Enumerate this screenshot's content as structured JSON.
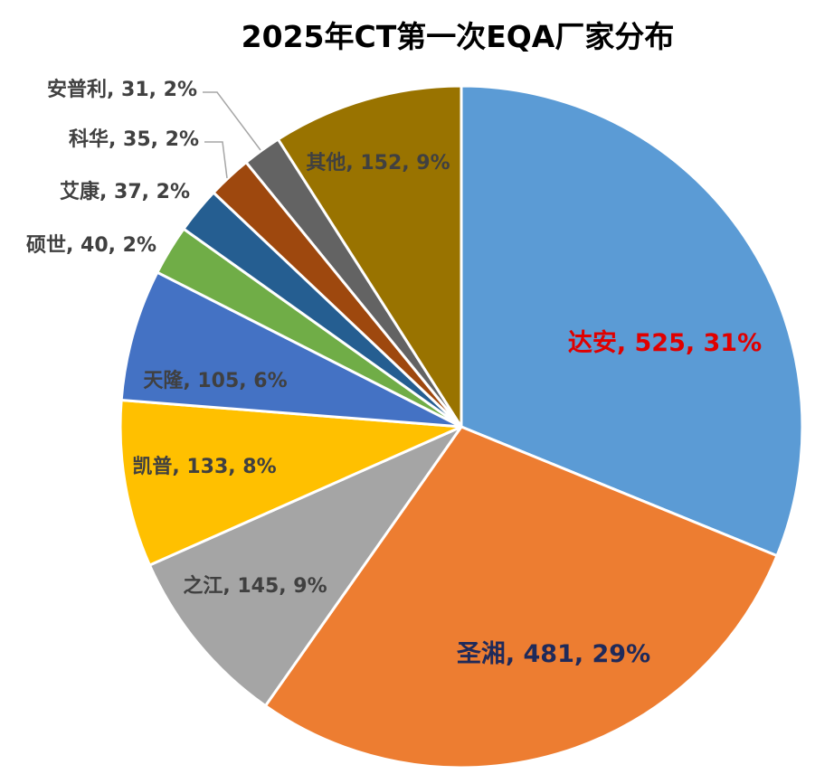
{
  "chart_data": {
    "type": "pie",
    "title": "2025年CT第一次EQA厂家分布",
    "slices": [
      {
        "name": "达安",
        "value": 525,
        "percent": "31%",
        "color": "#5B9BD5",
        "label_color": "#E00000"
      },
      {
        "name": "圣湘",
        "value": 481,
        "percent": "29%",
        "color": "#ED7D31",
        "label_color": "#1F2A5A"
      },
      {
        "name": "之江",
        "value": 145,
        "percent": "9%",
        "color": "#A5A5A5",
        "label_color": "#404040"
      },
      {
        "name": "凯普",
        "value": 133,
        "percent": "8%",
        "color": "#FFC000",
        "label_color": "#404040"
      },
      {
        "name": "天隆",
        "value": 105,
        "percent": "6%",
        "color": "#4472C4",
        "label_color": "#404040"
      },
      {
        "name": "硕世",
        "value": 40,
        "percent": "2%",
        "color": "#70AD47",
        "label_color": "#404040"
      },
      {
        "name": "艾康",
        "value": 37,
        "percent": "2%",
        "color": "#255E91",
        "label_color": "#404040"
      },
      {
        "name": "科华",
        "value": 35,
        "percent": "2%",
        "color": "#9E480E",
        "label_color": "#404040"
      },
      {
        "name": "安普利",
        "value": 31,
        "percent": "2%",
        "color": "#636363",
        "label_color": "#404040"
      },
      {
        "name": "其他",
        "value": 152,
        "percent": "9%",
        "color": "#997300",
        "label_color": "#404040"
      }
    ]
  }
}
